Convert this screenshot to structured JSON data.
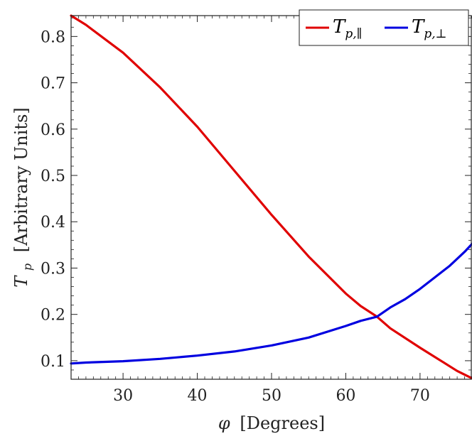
{
  "chart_data": {
    "type": "line",
    "xlabel_symbol": "φ",
    "xlabel_text": "[Degrees]",
    "ylabel_symbol": "T",
    "ylabel_sub": "p",
    "ylabel_text": "[Arbitrary Units]",
    "xlim": [
      23,
      77
    ],
    "ylim": [
      0.06,
      0.845
    ],
    "x_ticks": [
      30,
      40,
      50,
      60,
      70
    ],
    "y_ticks": [
      0.1,
      0.2,
      0.3,
      0.4,
      0.5,
      0.6,
      0.7,
      0.8
    ],
    "legend_position": "top-right",
    "series": [
      {
        "name_main": "T",
        "name_sub": "p,∥",
        "color": "#e00000",
        "x": [
          23,
          25,
          30,
          35,
          40,
          45,
          50,
          55,
          60,
          62,
          64.2,
          66,
          70,
          73,
          75,
          77
        ],
        "y": [
          0.845,
          0.825,
          0.765,
          0.69,
          0.605,
          0.51,
          0.415,
          0.325,
          0.245,
          0.218,
          0.195,
          0.17,
          0.128,
          0.098,
          0.078,
          0.062
        ]
      },
      {
        "name_main": "T",
        "name_sub": "p,⊥",
        "color": "#0000e0",
        "x": [
          23,
          25,
          30,
          35,
          40,
          45,
          50,
          55,
          60,
          62,
          64.2,
          66,
          68,
          70,
          72,
          74,
          76,
          77
        ],
        "y": [
          0.094,
          0.096,
          0.099,
          0.104,
          0.111,
          0.12,
          0.133,
          0.15,
          0.175,
          0.186,
          0.195,
          0.215,
          0.233,
          0.255,
          0.28,
          0.305,
          0.335,
          0.352
        ]
      }
    ]
  }
}
